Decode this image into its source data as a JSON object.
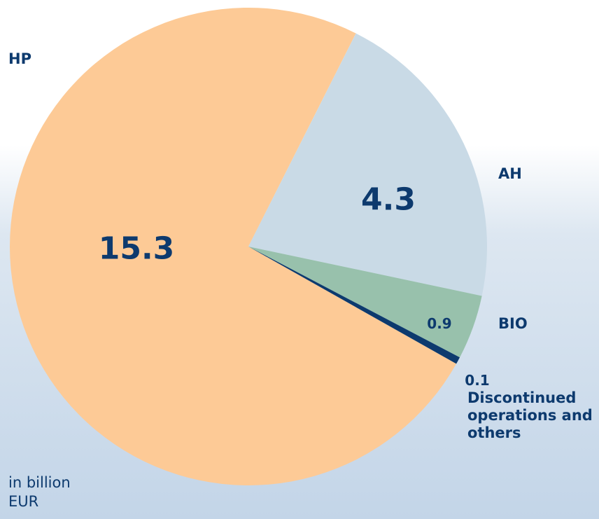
{
  "chart_data": {
    "type": "pie",
    "categories": [
      "HP",
      "AH",
      "BIO",
      "Discontinued operations and others"
    ],
    "values": [
      15.3,
      4.3,
      0.9,
      0.1
    ],
    "colors": [
      "#fdca96",
      "#c9dae6",
      "#98c1ac",
      "#0d3a6e"
    ],
    "note": "in billion EUR"
  }
}
